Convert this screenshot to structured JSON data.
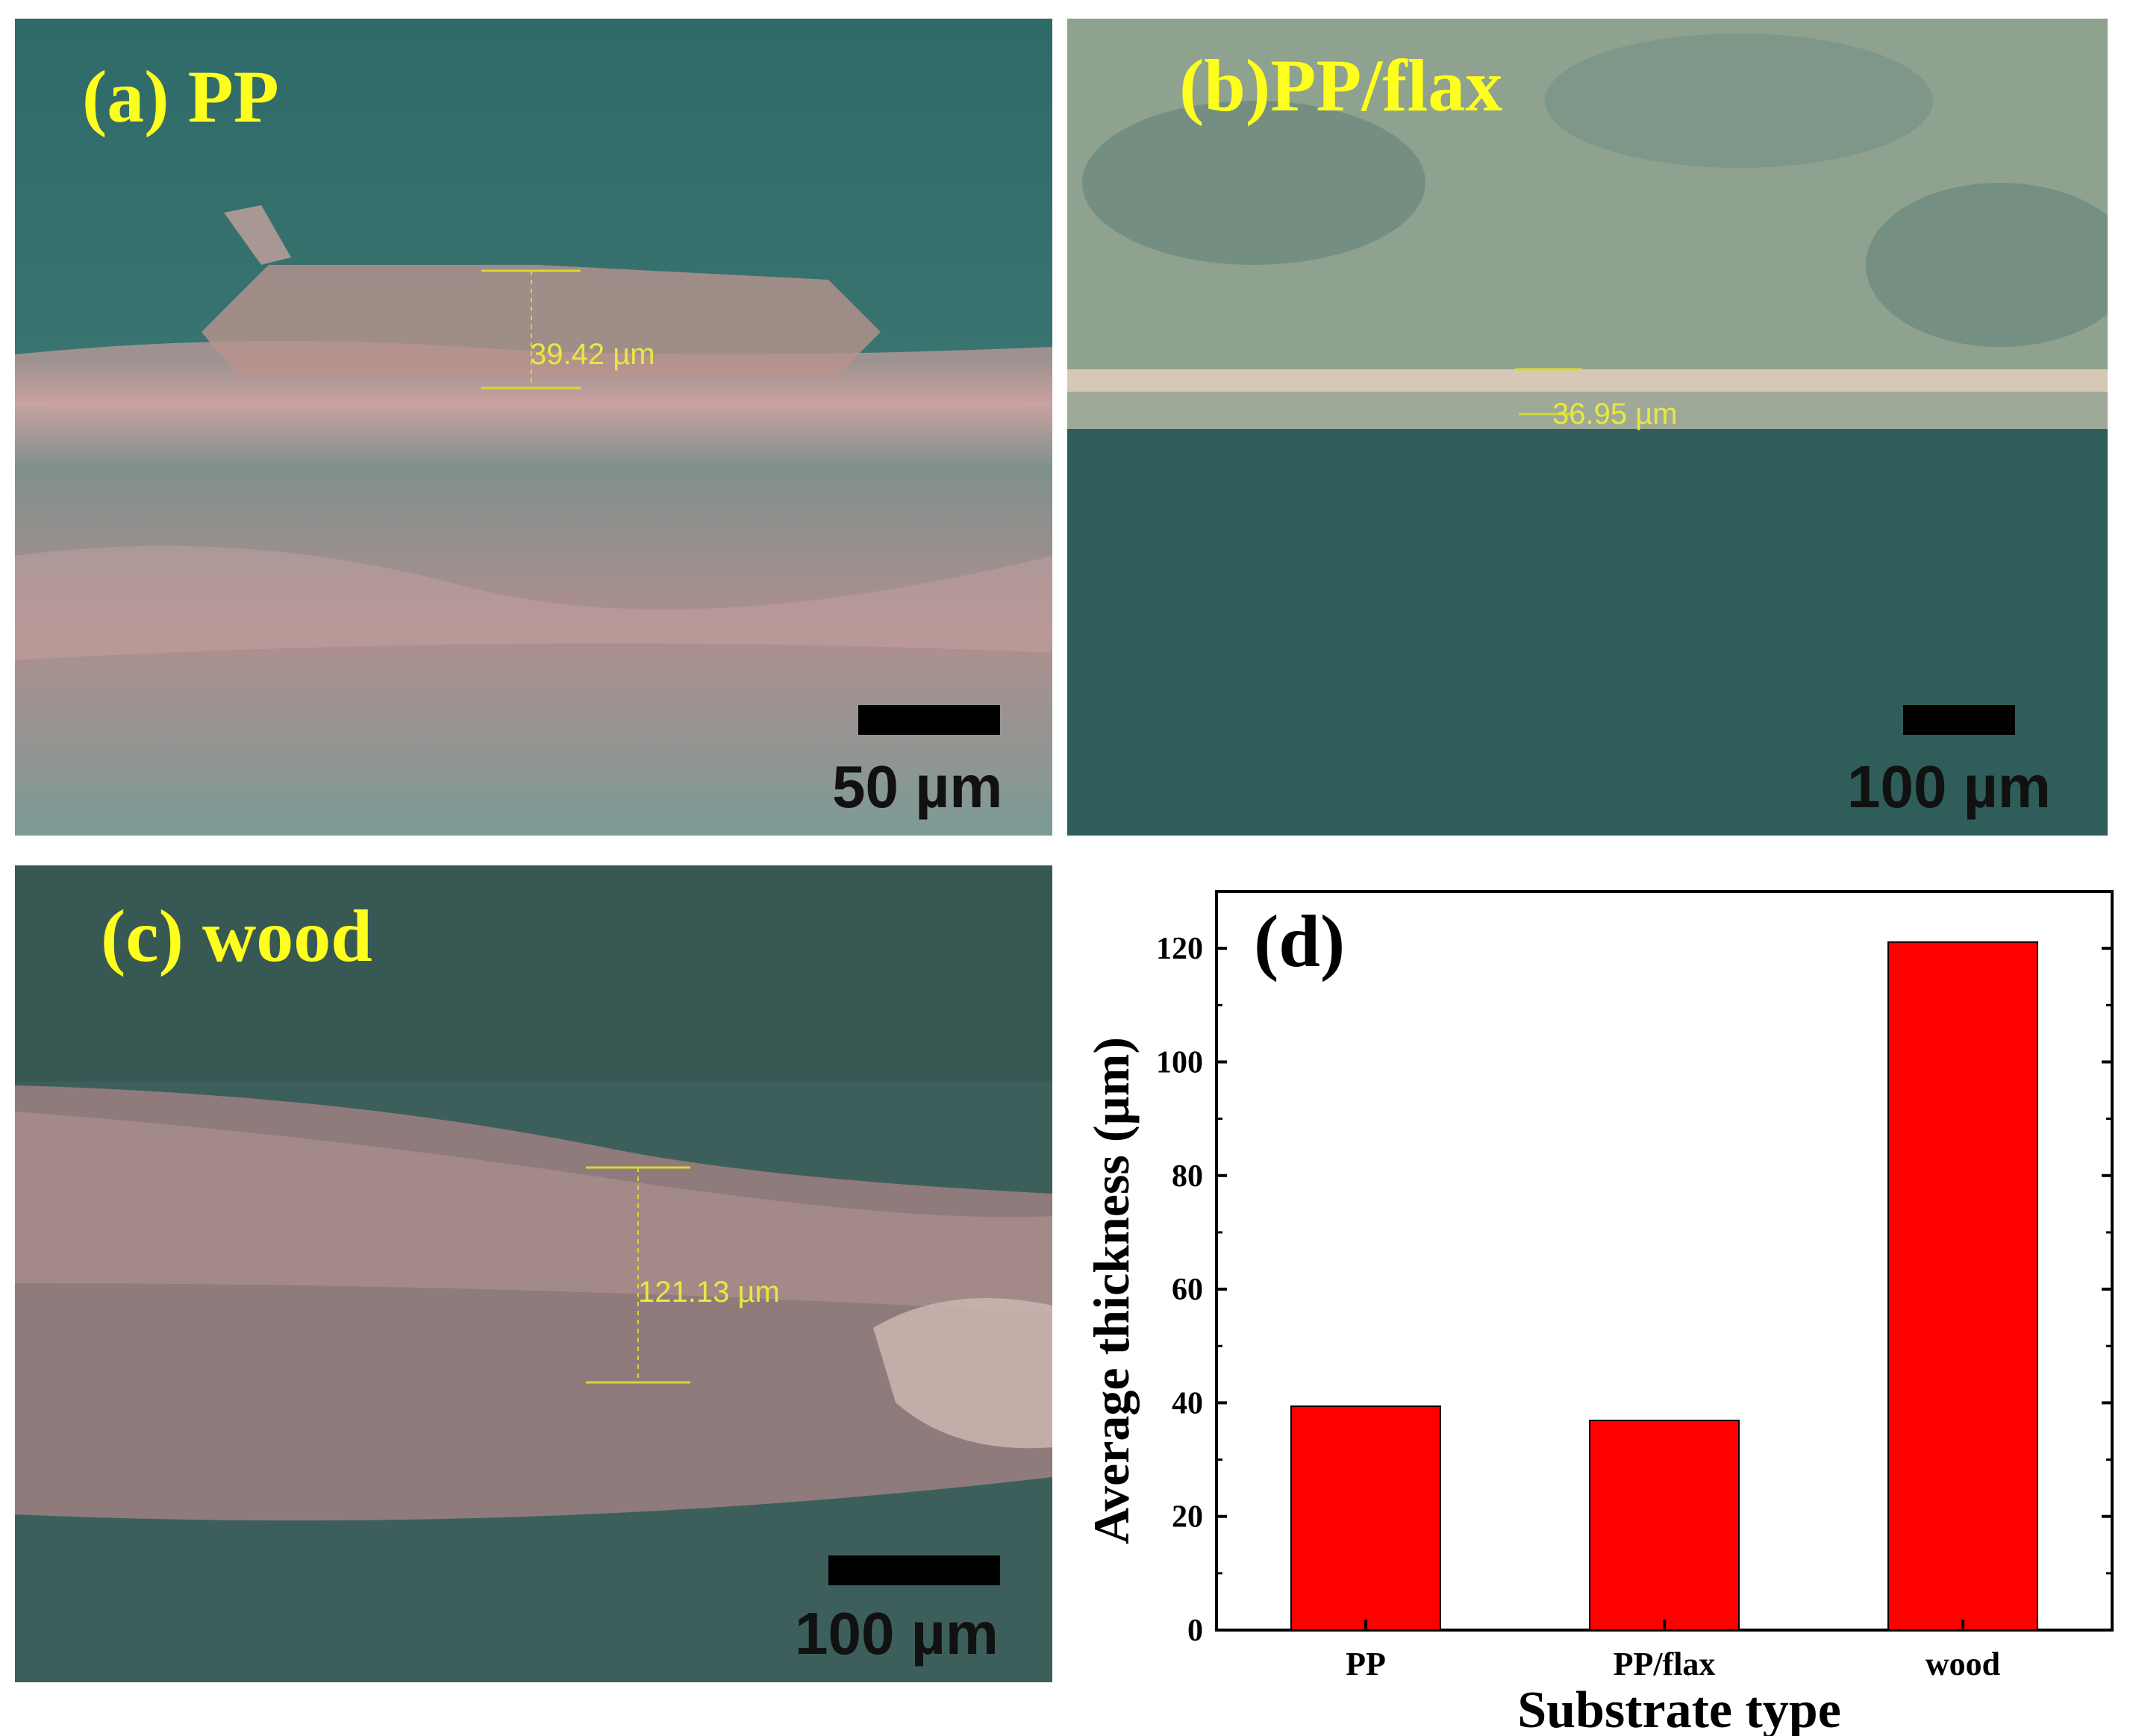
{
  "colors": {
    "label_yellow": "#ffff1e",
    "bar_fill": "#ff0000",
    "sem_teal": "#2f6b6a",
    "sem_pink": "#d9a9a6"
  },
  "panels": {
    "a": {
      "label": "(a) PP",
      "measurement": "39.42 µm",
      "scale": "50 µm"
    },
    "b": {
      "label": "(b)PP/flax",
      "measurement": "36.95 µm",
      "scale": "100 µm"
    },
    "c": {
      "label": "(c) wood",
      "measurement": "121.13 µm",
      "scale": "100 µm"
    }
  },
  "chart_data": {
    "type": "bar",
    "panel_label": "(d)",
    "categories": [
      "PP",
      "PP/flax",
      "wood"
    ],
    "values": [
      39.4,
      36.9,
      121.1
    ],
    "xlabel": "Substrate type",
    "ylabel": "Average thickness (µm)",
    "ylim": [
      0,
      130
    ],
    "yticks": [
      0,
      20,
      40,
      60,
      80,
      100,
      120
    ],
    "grid": false
  }
}
